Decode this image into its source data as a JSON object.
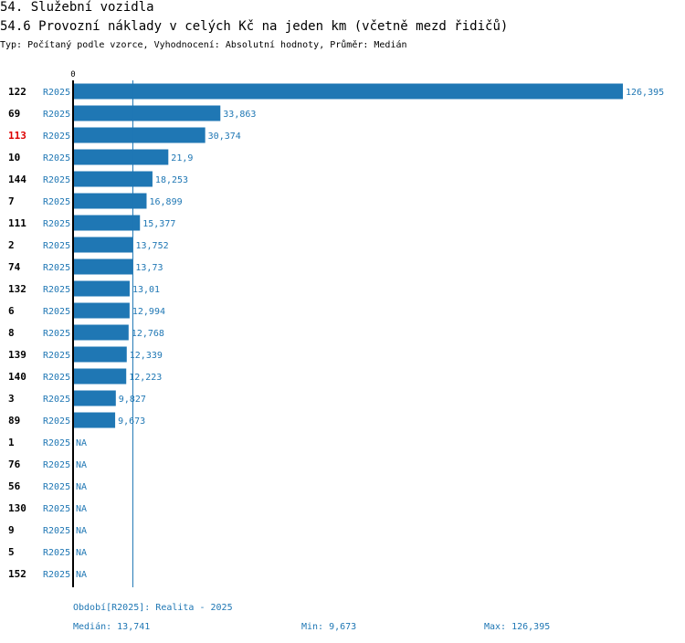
{
  "header": {
    "section_title": "54. Služební vozidla",
    "chart_title": "54.6 Provozní náklady v celých Kč na jeden km (včetně mezd řidičů)",
    "subtitle": "Typ: Počítaný podle vzorce, Vyhodnocení: Absolutní hodnoty, Průměr: Medián"
  },
  "footer": {
    "period": "Období[R2025]: Realita - 2025",
    "median": "Medián: 13,741",
    "min": "Min: 9,673",
    "max": "Max: 126,395"
  },
  "colors": {
    "bar": "#1f77b4",
    "label": "#1f77b4",
    "axis": "#000000",
    "highlight": "#dd0000"
  },
  "chart_data": {
    "type": "bar",
    "orientation": "horizontal",
    "axis_zero_label": "0",
    "series_label": "R2025",
    "median_value": 13.741,
    "xlim": [
      0,
      126.395
    ],
    "highlight_category": "113",
    "rows": [
      {
        "category": "122",
        "value": 126.395,
        "label": "126,395"
      },
      {
        "category": "69",
        "value": 33.863,
        "label": "33,863"
      },
      {
        "category": "113",
        "value": 30.374,
        "label": "30,374"
      },
      {
        "category": "10",
        "value": 21.9,
        "label": "21,9"
      },
      {
        "category": "144",
        "value": 18.253,
        "label": "18,253"
      },
      {
        "category": "7",
        "value": 16.899,
        "label": "16,899"
      },
      {
        "category": "111",
        "value": 15.377,
        "label": "15,377"
      },
      {
        "category": "2",
        "value": 13.752,
        "label": "13,752"
      },
      {
        "category": "74",
        "value": 13.73,
        "label": "13,73"
      },
      {
        "category": "132",
        "value": 13.01,
        "label": "13,01"
      },
      {
        "category": "6",
        "value": 12.994,
        "label": "12,994"
      },
      {
        "category": "8",
        "value": 12.768,
        "label": "12,768"
      },
      {
        "category": "139",
        "value": 12.339,
        "label": "12,339"
      },
      {
        "category": "140",
        "value": 12.223,
        "label": "12,223"
      },
      {
        "category": "3",
        "value": 9.827,
        "label": "9,827"
      },
      {
        "category": "89",
        "value": 9.673,
        "label": "9,673"
      },
      {
        "category": "1",
        "value": null,
        "label": "NA"
      },
      {
        "category": "76",
        "value": null,
        "label": "NA"
      },
      {
        "category": "56",
        "value": null,
        "label": "NA"
      },
      {
        "category": "130",
        "value": null,
        "label": "NA"
      },
      {
        "category": "9",
        "value": null,
        "label": "NA"
      },
      {
        "category": "5",
        "value": null,
        "label": "NA"
      },
      {
        "category": "152",
        "value": null,
        "label": "NA"
      }
    ]
  }
}
